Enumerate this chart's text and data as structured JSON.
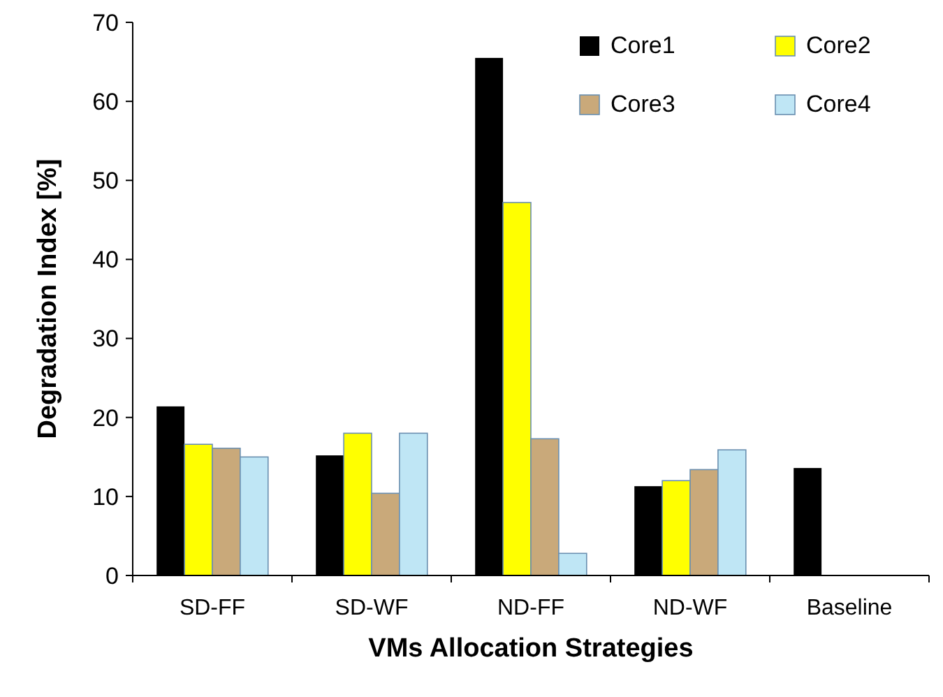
{
  "chart_data": {
    "type": "bar",
    "xlabel": "VMs Allocation Strategies",
    "ylabel": "Degradation Index [%]",
    "categories": [
      "SD-FF",
      "SD-WF",
      "ND-FF",
      "ND-WF",
      "Baseline"
    ],
    "series": [
      {
        "name": "Core1",
        "color": "#000000",
        "values": [
          21.4,
          15.2,
          65.5,
          11.3,
          13.6
        ]
      },
      {
        "name": "Core2",
        "color": "#ffff00",
        "values": [
          16.6,
          18.0,
          47.2,
          12.0,
          null
        ]
      },
      {
        "name": "Core3",
        "color": "#c9a97a",
        "values": [
          16.1,
          10.4,
          17.3,
          13.4,
          null
        ]
      },
      {
        "name": "Core4",
        "color": "#bfe6f5",
        "values": [
          15.0,
          18.0,
          2.8,
          15.9,
          null
        ]
      }
    ],
    "ylim": [
      0,
      70
    ],
    "yticks": [
      0,
      10,
      20,
      30,
      40,
      50,
      60,
      70
    ],
    "grid": false,
    "legend": "top right"
  }
}
